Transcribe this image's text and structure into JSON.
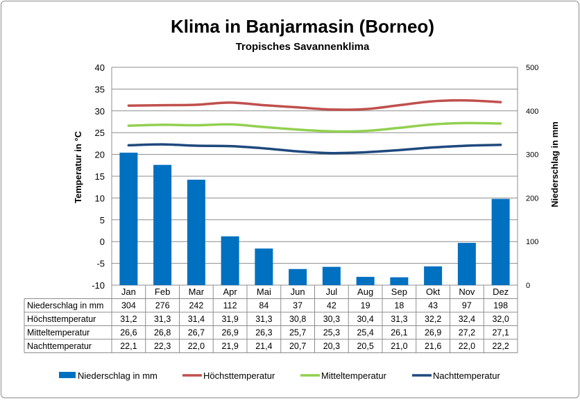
{
  "chart_data": {
    "type": "bar+line",
    "title": "Klima in Banjarmasin (Borneo)",
    "subtitle": "Tropisches Savannenklima",
    "ylabel_left": "Temperatur in °C",
    "ylabel_right": "Niederschlag in mm",
    "ylim_left": [
      -10,
      40
    ],
    "yticks_left": [
      "40",
      "35",
      "30",
      "25",
      "20",
      "15",
      "10",
      "5",
      "0",
      "-5",
      "-10"
    ],
    "ylim_right": [
      0,
      500
    ],
    "yticks_right": [
      "500",
      "400",
      "300",
      "200",
      "100",
      "0"
    ],
    "categories": [
      "Jan",
      "Feb",
      "Mar",
      "Apr",
      "Mai",
      "Jun",
      "Jul",
      "Aug",
      "Sep",
      "Okt",
      "Nov",
      "Dez"
    ],
    "grid": true,
    "legend_position": "bottom",
    "bar_series": {
      "name": "Niederschlag in mm",
      "color": "#0070C0",
      "values": [
        304,
        276,
        242,
        112,
        84,
        37,
        42,
        19,
        18,
        43,
        97,
        198
      ],
      "table_values": [
        "304",
        "276",
        "242",
        "112",
        "84",
        "37",
        "42",
        "19",
        "18",
        "43",
        "97",
        "198"
      ]
    },
    "line_series": [
      {
        "name": "Höchsttemperatur",
        "color": "#C0504D",
        "values": [
          31.2,
          31.3,
          31.4,
          31.9,
          31.3,
          30.8,
          30.3,
          30.4,
          31.3,
          32.2,
          32.4,
          32.0
        ],
        "table_values": [
          "31,2",
          "31,3",
          "31,4",
          "31,9",
          "31,3",
          "30,8",
          "30,3",
          "30,4",
          "31,3",
          "32,2",
          "32,4",
          "32,0"
        ]
      },
      {
        "name": "Mitteltemperatur",
        "color": "#92D050",
        "values": [
          26.6,
          26.8,
          26.7,
          26.9,
          26.3,
          25.7,
          25.3,
          25.4,
          26.1,
          26.9,
          27.2,
          27.1
        ],
        "table_values": [
          "26,6",
          "26,8",
          "26,7",
          "26,9",
          "26,3",
          "25,7",
          "25,3",
          "25,4",
          "26,1",
          "26,9",
          "27,2",
          "27,1"
        ]
      },
      {
        "name": "Nachttemperatur",
        "color": "#1F497D",
        "values": [
          22.1,
          22.3,
          22.0,
          21.9,
          21.4,
          20.7,
          20.3,
          20.5,
          21.0,
          21.6,
          22.0,
          22.2
        ],
        "table_values": [
          "22,1",
          "22,3",
          "22,0",
          "21,9",
          "21,4",
          "20,7",
          "20,3",
          "20,5",
          "21,0",
          "21,6",
          "22,0",
          "22,2"
        ]
      }
    ]
  }
}
